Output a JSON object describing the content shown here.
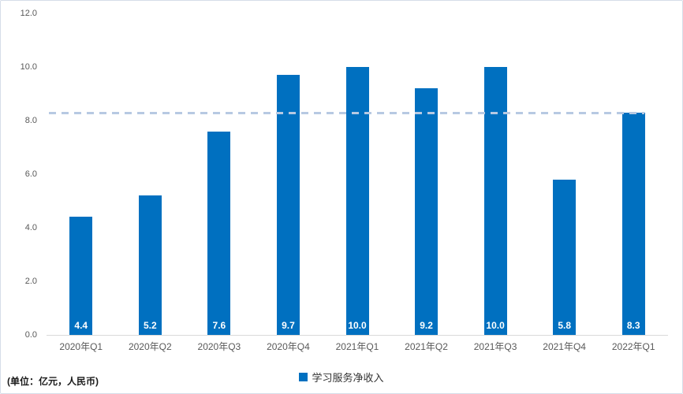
{
  "unit_note": "(单位：亿元，人民币)",
  "legend": {
    "label": "学习服务净收入"
  },
  "colors": {
    "bar": "#0070C0",
    "reference_line": "#b7c9e2",
    "axis_line": "#d9d9d9",
    "tick_text": "#595959",
    "value_label_text": "#ffffff"
  },
  "chart_data": {
    "type": "bar",
    "title": "",
    "xlabel": "",
    "ylabel": "",
    "categories": [
      "2020年Q1",
      "2020年Q2",
      "2020年Q3",
      "2020年Q4",
      "2021年Q1",
      "2021年Q2",
      "2021年Q3",
      "2021年Q4",
      "2022年Q1"
    ],
    "values": [
      4.4,
      5.2,
      7.6,
      9.7,
      10.0,
      9.2,
      10.0,
      5.8,
      8.3
    ],
    "value_labels": [
      "4.4",
      "5.2",
      "7.6",
      "9.7",
      "10.0",
      "9.2",
      "10.0",
      "5.8",
      "8.3"
    ],
    "series_name": "学习服务净收入",
    "ylim": [
      0,
      12
    ],
    "yticks": [
      "0.0",
      "2.0",
      "4.0",
      "6.0",
      "8.0",
      "10.0",
      "12.0"
    ],
    "grid": false,
    "legend_position": "bottom-center",
    "reference_line_value": 8.3,
    "reference_line_style": "dashed"
  }
}
